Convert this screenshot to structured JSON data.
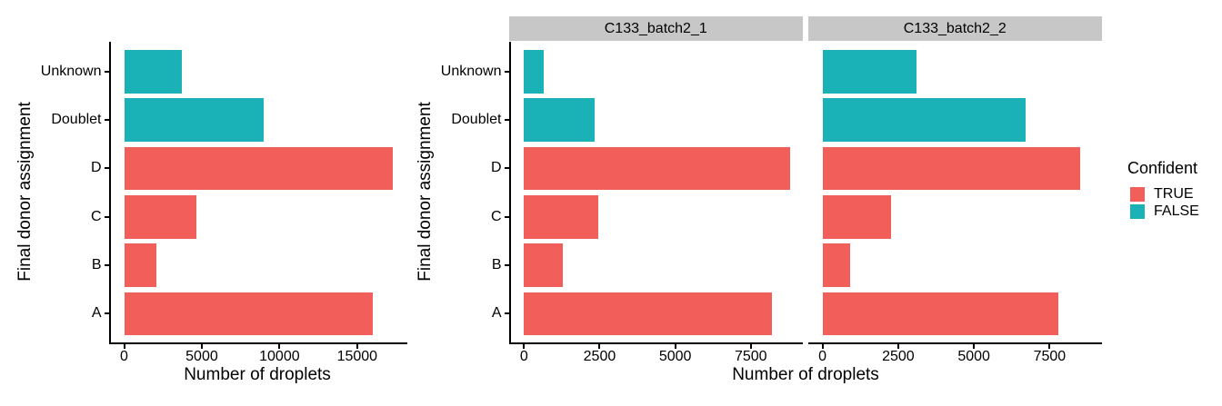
{
  "colors": {
    "confident_true": "#F25F5A",
    "confident_false": "#1AB2B7",
    "strip_bg": "#C7C7C7",
    "axis_line": "#000000",
    "text": "#000000",
    "background": "#FFFFFF"
  },
  "legend": {
    "title": "Confident",
    "items": [
      {
        "label": "TRUE",
        "color": "#F25F5A"
      },
      {
        "label": "FALSE",
        "color": "#1AB2B7"
      }
    ]
  },
  "chart_data": [
    {
      "type": "bar",
      "orientation": "horizontal",
      "title": "",
      "xlabel": "Number of droplets",
      "ylabel": "Final donor assignment",
      "category_order": "top-to-bottom",
      "categories": [
        "Unknown",
        "Doublet",
        "D",
        "C",
        "B",
        "A"
      ],
      "values": [
        3700,
        9000,
        17300,
        4650,
        2100,
        16000
      ],
      "confident": [
        "FALSE",
        "FALSE",
        "TRUE",
        "TRUE",
        "TRUE",
        "TRUE"
      ],
      "xlim": [
        0,
        18200
      ],
      "x_ticks": [
        0,
        5000,
        10000,
        15000
      ],
      "grid": false,
      "legend_position": "none"
    },
    {
      "type": "bar",
      "orientation": "horizontal",
      "title": "",
      "xlabel": "Number of droplets",
      "ylabel": "Final donor assignment",
      "category_order": "top-to-bottom",
      "categories": [
        "Unknown",
        "Doublet",
        "D",
        "C",
        "B",
        "A"
      ],
      "confident": [
        "FALSE",
        "FALSE",
        "TRUE",
        "TRUE",
        "TRUE",
        "TRUE"
      ],
      "facets": [
        {
          "label": "C133_batch2_1",
          "values": [
            650,
            2350,
            8800,
            2450,
            1270,
            8200
          ]
        },
        {
          "label": "C133_batch2_2",
          "values": [
            3100,
            6700,
            8500,
            2250,
            900,
            7800
          ]
        }
      ],
      "xlim": [
        0,
        9220
      ],
      "x_ticks": [
        0,
        2500,
        5000,
        7500
      ],
      "grid": false,
      "legend_position": "right"
    }
  ]
}
